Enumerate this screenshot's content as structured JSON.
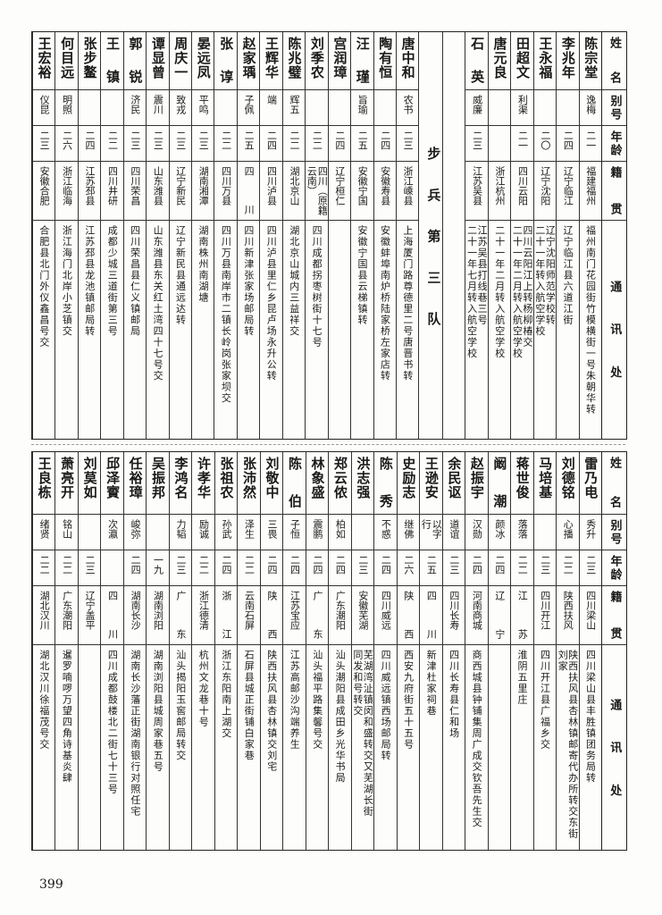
{
  "header": {
    "name": "姓名",
    "alias": "别号",
    "age": "年龄",
    "origin": "籍贯",
    "address": "通讯处"
  },
  "top": {
    "rows_right": [
      {
        "name": "陈宗堂",
        "alias": "逸梅",
        "age": "二一",
        "origin": "福建福州",
        "address": "福州南门花园街竹模横街一号朱朝华转"
      },
      {
        "name": "李兆年",
        "alias": "",
        "age": "二四",
        "origin": "辽宁临江",
        "address": "辽宁临江县六道江街"
      },
      {
        "name": "王永福",
        "alias": "",
        "age": "二〇",
        "origin": "辽宁沈阳",
        "address": "辽宁沈阳师范学校转\n二十一年转入航空学校"
      },
      {
        "name": "田超文",
        "alias": "利渠",
        "age": "二一",
        "origin": "四川云阳",
        "address": "四川云阳江上转杨柳椿交\n二十一年二月转入航空学校"
      },
      {
        "name": "唐元良",
        "alias": "",
        "age": "",
        "origin": "浙江杭州",
        "address": "二十一年二月转入航空学校"
      },
      {
        "name": "石英",
        "alias": "威廉",
        "age": "二三",
        "origin": "江苏吴县",
        "address": "江苏吴县打线巷三号\n二十一年七月转入航空学校"
      }
    ],
    "unit_label": "步兵第三队",
    "rows_left": [
      {
        "name": "唐中和",
        "alias": "农书",
        "age": "二三",
        "origin": "浙江嵊县",
        "address": "上海厦门路尊德里二号唐晋书转"
      },
      {
        "name": "陶有恒",
        "alias": "",
        "age": "二四",
        "origin": "安徽寿县",
        "address": "安徽蚌埠南炉桥陆家桥左家店转"
      },
      {
        "name": "汪瑾",
        "alias": "旨瑜",
        "age": "二五",
        "origin": "安徽宁国",
        "address": "安徽宁国县云梯镇转"
      },
      {
        "name": "宫润璋",
        "alias": "",
        "age": "二四",
        "origin": "辽宁桓仁",
        "address": ""
      },
      {
        "name": "刘季农",
        "alias": "",
        "age": "二二",
        "origin": "四川（原籍云南）",
        "address": "四川成都拐枣树街十七号"
      },
      {
        "name": "陈兆璧",
        "alias": "辉五",
        "age": "二二",
        "origin": "湖北京山",
        "address": "湖北京山城内三益祥交"
      },
      {
        "name": "王辉华",
        "alias": "端",
        "age": "二四",
        "origin": "四川泸县",
        "address": "四川泸县里仁乡昆卢场永升公转"
      },
      {
        "name": "赵家瑀",
        "alias": "子佩",
        "age": "二五",
        "origin": "四川",
        "address": "四川新津张家场邮局转"
      },
      {
        "name": "张谆",
        "alias": "",
        "age": "二二",
        "origin": "四川万县",
        "address": "四川万县南岸市二镇长岭岗张家坝交"
      },
      {
        "name": "晏远凤",
        "alias": "平鸣",
        "age": "二三",
        "origin": "湖南湘潭",
        "address": "湖南株州南湖塘"
      },
      {
        "name": "周庆一",
        "alias": "致戎",
        "age": "二三",
        "origin": "辽宁新民",
        "address": "辽宁新民县通远达转"
      },
      {
        "name": "谭显曾",
        "alias": "震川",
        "age": "二三",
        "origin": "山东潍县",
        "address": "山东潍县东关红土湾四十七号交"
      },
      {
        "name": "郭锐",
        "alias": "济民",
        "age": "二三",
        "origin": "四川荣昌",
        "address": "四川荣昌县仁义镇邮局"
      },
      {
        "name": "王镇",
        "alias": "",
        "age": "二二",
        "origin": "四川井研",
        "address": "成都少城三道街第三号"
      },
      {
        "name": "张步鳌",
        "alias": "",
        "age": "二四",
        "origin": "江苏邳县",
        "address": "江苏邳县龙池镇邮局转"
      },
      {
        "name": "何目远",
        "alias": "明照",
        "age": "二六",
        "origin": "浙江临海",
        "address": "浙江海门北岸小芝镇交"
      },
      {
        "name": "王宏裕",
        "alias": "仪昆",
        "age": "二三",
        "origin": "安徽合肥",
        "address": "合肥县北门外仪鑫昌号交"
      }
    ]
  },
  "bottom": {
    "rows": [
      {
        "name": "雷乃电",
        "alias": "秀升",
        "age": "二三",
        "origin": "四川梁山",
        "address": "四川梁山县丰胜镇团务局转"
      },
      {
        "name": "刘德铭",
        "alias": "心播",
        "age": "二二",
        "origin": "陕西扶风",
        "address": "陕西扶风县杏林镇邮寄代办所转交东街刘家"
      },
      {
        "name": "马培基",
        "alias": "",
        "age": "二三",
        "origin": "四川开江",
        "address": "四川开江县广福乡交"
      },
      {
        "name": "蒋世俊",
        "alias": "落落",
        "age": "二二",
        "origin": "江苏",
        "address": "淮阴五里庄"
      },
      {
        "name": "阚潮",
        "alias": "颜冰",
        "age": "二四",
        "origin": "辽宁",
        "address": ""
      },
      {
        "name": "赵振宇",
        "alias": "汉勋",
        "age": "二四",
        "origin": "河南商城",
        "address": "商西城县钟铺集周广成交钦吾先生交"
      },
      {
        "name": "余民讴",
        "alias": "道谊",
        "age": "二三",
        "origin": "四川长寿",
        "address": "四川长寿县仁和场"
      },
      {
        "name": "王逊安",
        "alias": "以字行",
        "age": "二五",
        "origin": "四川",
        "address": "新津杜家祠巷"
      },
      {
        "name": "史励志",
        "alias": "继佛",
        "age": "二六",
        "origin": "陕西",
        "address": "西安九府街五十五号"
      },
      {
        "name": "陈秀",
        "alias": "不惑",
        "age": "二四",
        "origin": "四川威远",
        "address": "四川威远镇西场邮局转"
      },
      {
        "name": "洪志强",
        "alias": "",
        "age": "二三",
        "origin": "安徽芜湖",
        "address": "芜湖湾沚镇闵和盛转交又芜湖长街\n同发和号转交"
      },
      {
        "name": "郑云侬",
        "alias": "柏如",
        "age": "二四",
        "origin": "广东潮阳",
        "address": "汕头潮阳县成田乡光华书局"
      },
      {
        "name": "林象盛",
        "alias": "震鹏",
        "age": "二四",
        "origin": "广东",
        "address": "汕头福平路集馨号交"
      },
      {
        "name": "陈伯",
        "alias": "子恒",
        "age": "二四",
        "origin": "江苏宝应",
        "address": "江苏高邮沙沟端养生"
      },
      {
        "name": "刘敬中",
        "alias": "三畏",
        "age": "二四",
        "origin": "陕西",
        "address": "陕西扶风县杏林镇交刘宅"
      },
      {
        "name": "张沛然",
        "alias": "泽生",
        "age": "二二",
        "origin": "云南石屏",
        "address": "石屏县城正街铺白家巷"
      },
      {
        "name": "张祖农",
        "alias": "孙武",
        "age": "二四",
        "origin": "浙江",
        "address": "浙江东阳南上湖交"
      },
      {
        "name": "许孝华",
        "alias": "励诚",
        "age": "二二",
        "origin": "浙江德清",
        "address": "杭州文龙巷十号"
      },
      {
        "name": "李鸿名",
        "alias": "力韬",
        "age": "二三",
        "origin": "广东",
        "address": "汕头揭阳玉窖邮局转交"
      },
      {
        "name": "吴振邦",
        "alias": "",
        "age": "一九",
        "origin": "湖南浏阳",
        "address": "湖南浏阳县城周家巷五号"
      },
      {
        "name": "任裕璋",
        "alias": "峻弥",
        "age": "二四",
        "origin": "湖南长沙",
        "address": "湖南长沙藩正街湖南银行对照任宅"
      },
      {
        "name": "邱泽賨",
        "alias": "次瀛",
        "age": "",
        "origin": "四川",
        "address": "四川成都鼓楼北二街七十三号"
      },
      {
        "name": "刘莫如",
        "alias": "",
        "age": "二三",
        "origin": "辽宁盖平",
        "address": ""
      },
      {
        "name": "萧亮开",
        "alias": "铭山",
        "age": "二二",
        "origin": "广东潮阳",
        "address": "暹罗喃啰万望四角诗基炎肆"
      },
      {
        "name": "王良栋",
        "alias": "绪贤",
        "age": "二二",
        "origin": "湖北汉川",
        "address": "湖北汉川徐福茂号交"
      }
    ]
  },
  "page_number": "399"
}
